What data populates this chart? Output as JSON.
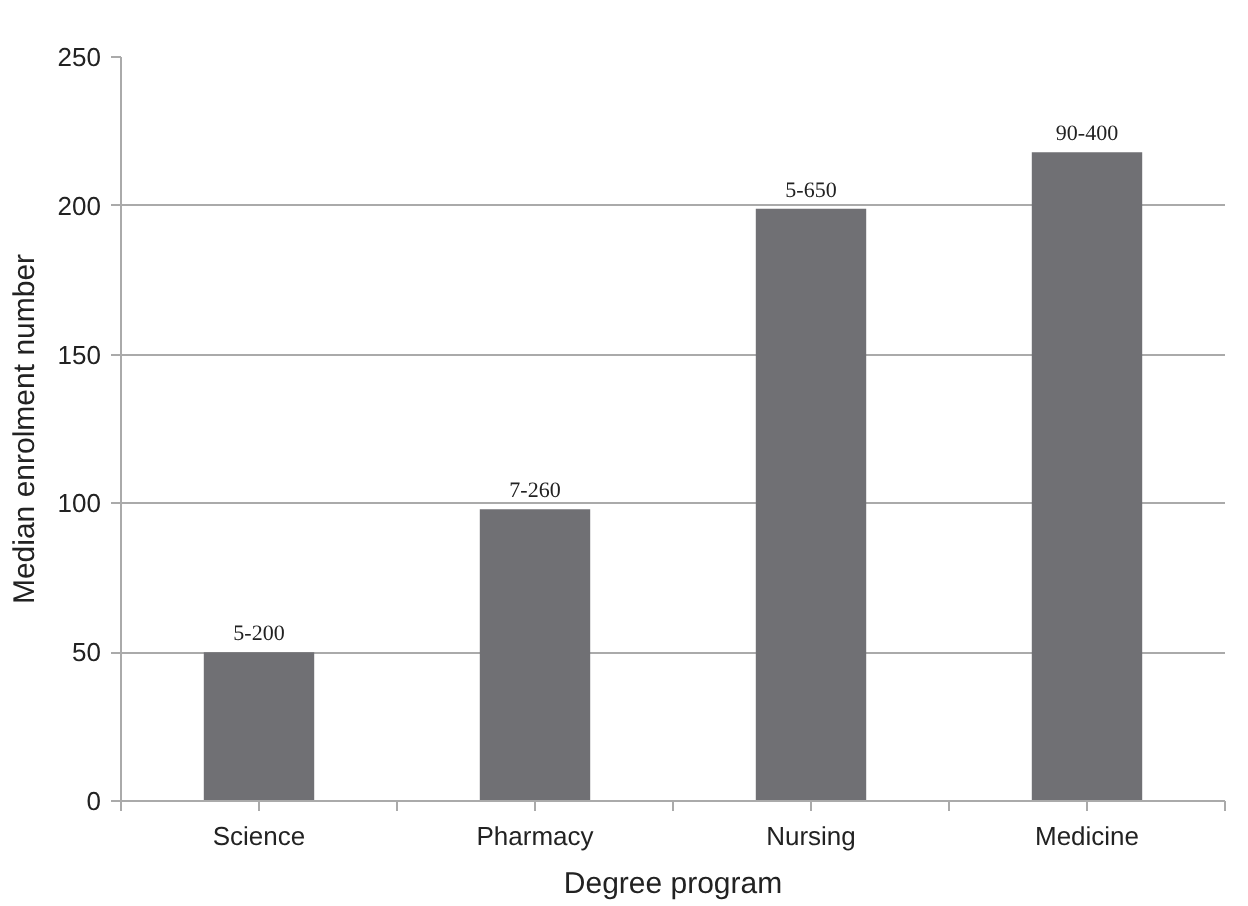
{
  "chart_data": {
    "type": "bar",
    "xlabel": "Degree program",
    "ylabel": "Median enrolment number",
    "categories": [
      "Science",
      "Pharmacy",
      "Nursing",
      "Medicine"
    ],
    "values": [
      50,
      98,
      199,
      218
    ],
    "value_labels": [
      "5-200",
      "7-260",
      "5-650",
      "90-400"
    ],
    "color": "#707074",
    "ylim": [
      0,
      250
    ],
    "yticks": [
      0,
      50,
      100,
      150,
      200,
      250
    ],
    "grid": "y"
  }
}
